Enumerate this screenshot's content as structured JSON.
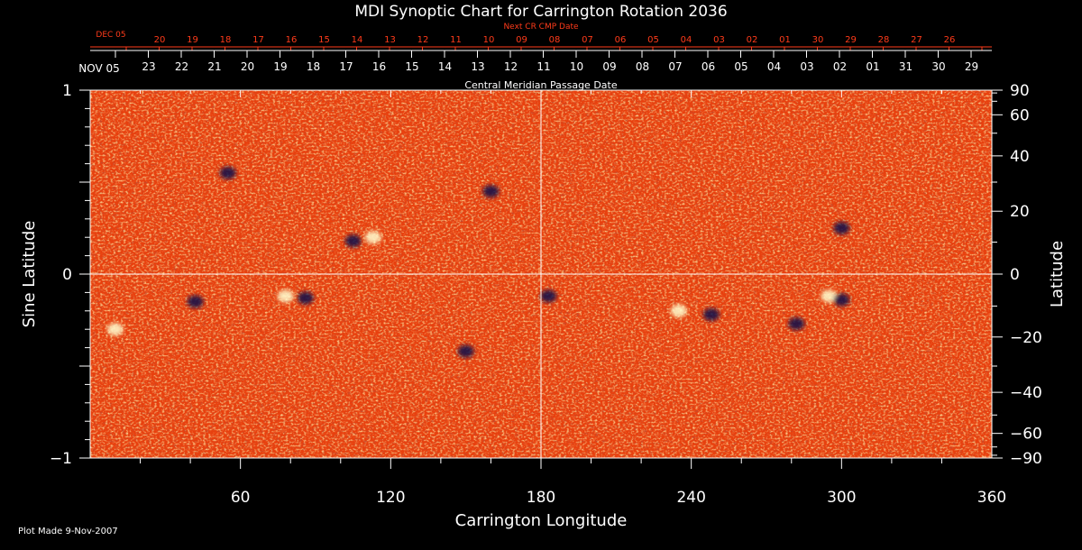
{
  "chart_data": {
    "type": "heatmap",
    "title": "MDI Synoptic Chart for Carrington Rotation 2036",
    "xlabel": "Carrington Longitude",
    "ylabel_left": "Sine Latitude",
    "ylabel_right": "Latitude",
    "xlim": [
      0,
      360
    ],
    "ylim": [
      -1,
      1
    ],
    "x_ticks": [
      60,
      120,
      180,
      240,
      300,
      360
    ],
    "y_left_ticks": [
      {
        "value": 1,
        "label": "1"
      },
      {
        "value": 0,
        "label": "0"
      },
      {
        "value": -1,
        "label": "−1"
      }
    ],
    "y_right_ticks": [
      90,
      60,
      40,
      20,
      0,
      -20,
      -40,
      -60,
      -90
    ],
    "y_right_labels": [
      "90",
      "60",
      "40",
      "20",
      "0",
      "−20",
      "−40",
      "−60",
      "−90"
    ],
    "top_axis": {
      "label": "Central Meridian Passage Date",
      "start_label": "NOV 05",
      "dates": [
        "23",
        "22",
        "21",
        "20",
        "19",
        "18",
        "17",
        "16",
        "15",
        "14",
        "13",
        "12",
        "11",
        "10",
        "09",
        "08",
        "07",
        "06",
        "05",
        "04",
        "03",
        "02",
        "01",
        "31",
        "30",
        "29"
      ]
    },
    "next_axis": {
      "label": "Next CR CMP Date",
      "start_label": "DEC 05",
      "dates": [
        "20",
        "19",
        "18",
        "17",
        "16",
        "15",
        "14",
        "13",
        "12",
        "11",
        "10",
        "09",
        "08",
        "07",
        "06",
        "05",
        "04",
        "03",
        "02",
        "01",
        "30",
        "29",
        "28",
        "27",
        "26"
      ]
    },
    "magnetic_regions": [
      {
        "lon": 78,
        "sinlat": -0.12,
        "polarity": "positive"
      },
      {
        "lon": 86,
        "sinlat": -0.13,
        "polarity": "negative"
      },
      {
        "lon": 105,
        "sinlat": 0.18,
        "polarity": "negative"
      },
      {
        "lon": 113,
        "sinlat": 0.2,
        "polarity": "positive"
      },
      {
        "lon": 42,
        "sinlat": -0.15,
        "polarity": "negative"
      },
      {
        "lon": 10,
        "sinlat": -0.3,
        "polarity": "positive"
      },
      {
        "lon": 183,
        "sinlat": -0.12,
        "polarity": "negative"
      },
      {
        "lon": 235,
        "sinlat": -0.2,
        "polarity": "positive"
      },
      {
        "lon": 248,
        "sinlat": -0.22,
        "polarity": "negative"
      },
      {
        "lon": 295,
        "sinlat": -0.12,
        "polarity": "positive"
      },
      {
        "lon": 300,
        "sinlat": -0.14,
        "polarity": "negative"
      },
      {
        "lon": 282,
        "sinlat": -0.27,
        "polarity": "negative"
      },
      {
        "lon": 160,
        "sinlat": 0.45,
        "polarity": "negative"
      },
      {
        "lon": 150,
        "sinlat": -0.42,
        "polarity": "negative"
      },
      {
        "lon": 300,
        "sinlat": 0.25,
        "polarity": "negative"
      },
      {
        "lon": 55,
        "sinlat": 0.55,
        "polarity": "negative"
      }
    ],
    "colors": {
      "background": "#e8400e",
      "positive": "#ffffd0",
      "negative": "#0a0a4a",
      "axes": "#ffffff",
      "secondary_axis": "#ff3b1a"
    },
    "grid": false
  },
  "footer": {
    "plot_made": "Plot Made  9-Nov-2007"
  }
}
